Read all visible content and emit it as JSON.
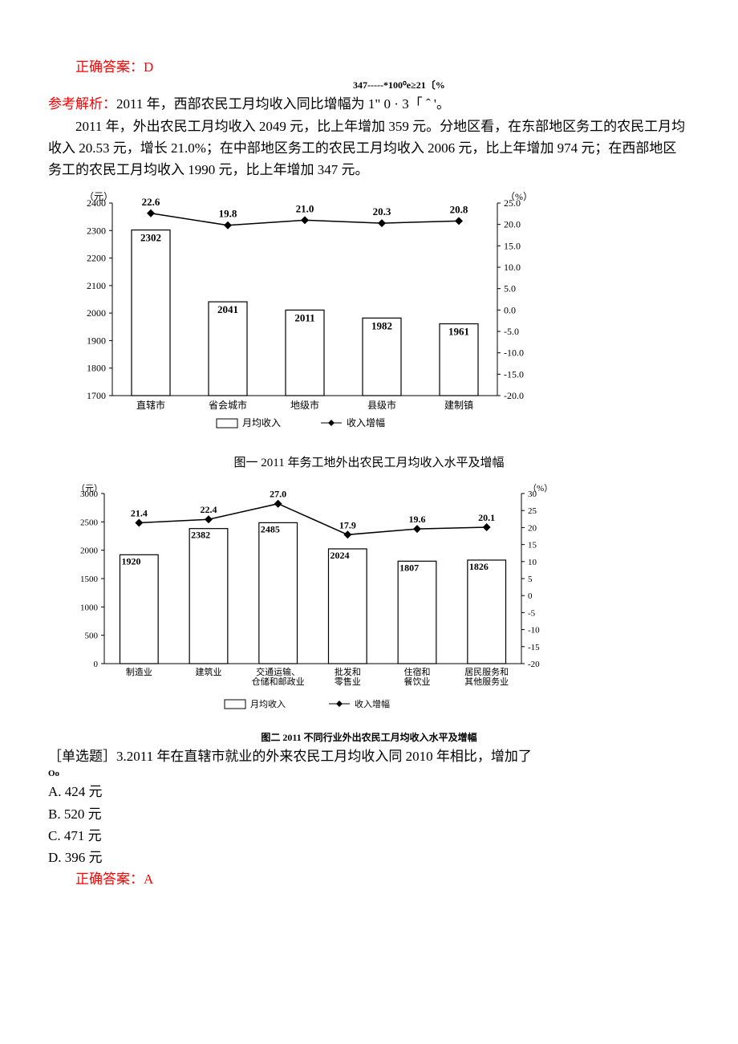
{
  "answer1": {
    "label": "正确答案：",
    "value": "D"
  },
  "analysis": {
    "prefix": "参考解析：",
    "line1": "2011 年，西部农民工月均收入同比增幅为 1\" 0 · 3「  ˆ '。",
    "sup": "347-----*100⁰e≥21〔%"
  },
  "passage": {
    "p1": "2011 年，外出农民工月均收入 2049 元，比上年增加 359 元。分地区看，在东部地区务工的农民工月均收入 20.53 元，增长 21.0%；在中部地区务工的农民工月均收入 2006 元，比上年增加 974 元；在西部地区务工的农民工月均收入 1990 元，比上年增加 347 元。"
  },
  "chart1": {
    "type": "bar-line",
    "y_left_unit": "（元）",
    "y_right_unit": "（%）",
    "y_left": {
      "min": 1700,
      "max": 2400,
      "step": 100
    },
    "y_right": {
      "min": -20.0,
      "max": 25.0,
      "step": 5.0
    },
    "categories": [
      "直辖市",
      "省会城市",
      "地级市",
      "县级市",
      "建制镇"
    ],
    "bar_values": [
      2302,
      2041,
      2011,
      1982,
      1961
    ],
    "line_values": [
      22.6,
      19.8,
      21.0,
      20.3,
      20.8
    ],
    "legend": {
      "bar": "月均收入",
      "line": "收入增幅"
    },
    "caption": "图一  2011 年务工地外出农民工月均收入水平及增幅",
    "colors": {
      "bar_fill": "#ffffff",
      "bar_stroke": "#000000",
      "line": "#000000",
      "marker": "#000000",
      "axis": "#000000",
      "bg": "#ffffff"
    },
    "fonts": {
      "axis_label": 12,
      "value_label": 13,
      "caption": 15
    }
  },
  "chart2": {
    "type": "bar-line",
    "y_left_unit": "（元）",
    "y_right_unit": "（%）",
    "y_left": {
      "min": 0,
      "max": 3000,
      "step": 500
    },
    "y_right": {
      "min": -20,
      "max": 30,
      "step": 5
    },
    "categories": [
      "制造业",
      "建筑业",
      "交通运输、\n仓储和邮政业",
      "批发和\n零售业",
      "住宿和\n餐饮业",
      "居民服务和\n其他服务业"
    ],
    "bar_values": [
      1920,
      2382,
      2485,
      2024,
      1807,
      1826
    ],
    "line_values": [
      21.4,
      22.4,
      27.0,
      17.9,
      19.6,
      20.1
    ],
    "legend": {
      "bar": "月均收入",
      "line": "收入增幅"
    },
    "caption": "图二 2011 不同行业外出农民工月均收入水平及增幅",
    "colors": {
      "bar_fill": "#ffffff",
      "bar_stroke": "#000000",
      "line": "#000000",
      "marker": "#000000",
      "axis": "#000000",
      "bg": "#ffffff"
    },
    "fonts": {
      "axis_label": 11,
      "value_label": 12,
      "caption": 12
    }
  },
  "question": {
    "stem_prefix": "［单选题］3.",
    "stem": "2011 年在直辖市就业的外来农民工月均收入同 2010 年相比，增加了",
    "trail": "Oo",
    "options": {
      "A": "424 元",
      "B": "520 元",
      "C": "471 元",
      "D": "396 元"
    }
  },
  "answer2": {
    "label": "正确答案：",
    "value": "A"
  }
}
